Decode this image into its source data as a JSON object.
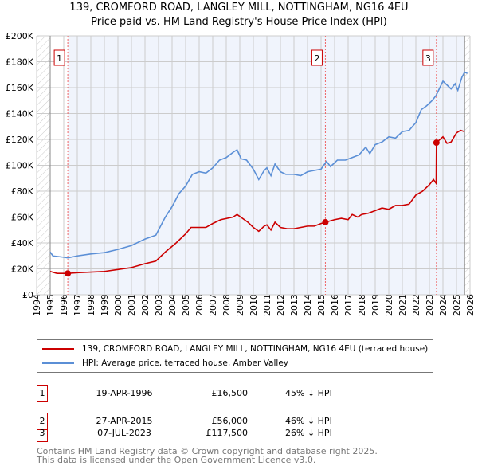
{
  "chart_data": {
    "type": "line",
    "title": "139, CROMFORD ROAD, LANGLEY MILL, NOTTINGHAM, NG16 4EU",
    "subtitle": "Price paid vs. HM Land Registry's House Price Index (HPI)",
    "xlim": [
      1994,
      2026
    ],
    "ylim": [
      0,
      200000
    ],
    "x_ticks": [
      "1994",
      "1995",
      "1996",
      "1997",
      "1998",
      "1999",
      "2000",
      "2001",
      "2002",
      "2003",
      "2004",
      "2005",
      "2006",
      "2007",
      "2008",
      "2009",
      "2010",
      "2011",
      "2012",
      "2013",
      "2014",
      "2015",
      "2016",
      "2017",
      "2018",
      "2019",
      "2020",
      "2021",
      "2022",
      "2023",
      "2024",
      "2025",
      "2026"
    ],
    "y_ticks": [
      {
        "v": 0,
        "label": "£0"
      },
      {
        "v": 20000,
        "label": "£20K"
      },
      {
        "v": 40000,
        "label": "£40K"
      },
      {
        "v": 60000,
        "label": "£60K"
      },
      {
        "v": 80000,
        "label": "£80K"
      },
      {
        "v": 100000,
        "label": "£100K"
      },
      {
        "v": 120000,
        "label": "£120K"
      },
      {
        "v": 140000,
        "label": "£140K"
      },
      {
        "v": 160000,
        "label": "£160K"
      },
      {
        "v": 180000,
        "label": "£180K"
      },
      {
        "v": 200000,
        "label": "£200K"
      }
    ],
    "grid": true,
    "series": [
      {
        "name": "139, CROMFORD ROAD, LANGLEY MILL, NOTTINGHAM, NG16 4EU (terraced house)",
        "color": "#cc0000",
        "x": [
          1995,
          1995.5,
          1996.3,
          1997,
          1998,
          1999,
          2000,
          2001,
          2002,
          2002.8,
          2003.5,
          2004.3,
          2005,
          2005.4,
          2006,
          2006.5,
          2007,
          2007.6,
          2008.5,
          2008.8,
          2009.2,
          2009.6,
          2010,
          2010.4,
          2010.8,
          2011,
          2011.3,
          2011.6,
          2012,
          2012.5,
          2013,
          2013.5,
          2014,
          2014.5,
          2015,
          2015.32,
          2016,
          2016.5,
          2017,
          2017.3,
          2017.7,
          2018,
          2018.5,
          2019,
          2019.5,
          2020,
          2020.5,
          2021,
          2021.5,
          2022,
          2022.5,
          2023,
          2023.3,
          2023.5,
          2023.52,
          2024,
          2024.3,
          2024.6,
          2025,
          2025.3,
          2025.6
        ],
        "y": [
          18000,
          16500,
          16500,
          17000,
          17500,
          18000,
          19500,
          21000,
          24000,
          26000,
          33000,
          40000,
          47000,
          52000,
          52000,
          52000,
          55000,
          58000,
          60000,
          62000,
          59000,
          56000,
          52000,
          49000,
          53000,
          54000,
          50000,
          56000,
          52000,
          51000,
          51000,
          52000,
          53000,
          53000,
          55000,
          56000,
          58000,
          59000,
          58000,
          62000,
          60000,
          62000,
          63000,
          65000,
          67000,
          66000,
          69000,
          69000,
          70000,
          77000,
          80000,
          85000,
          89000,
          86000,
          117500,
          122000,
          117000,
          118000,
          125000,
          127000,
          126000
        ]
      },
      {
        "name": "HPI: Average price, terraced house, Amber Valley",
        "color": "#5b8fd6",
        "x": [
          1995,
          1995.2,
          1996,
          1996.3,
          1997,
          1998,
          1999,
          2000,
          2001,
          2002,
          2002.8,
          2003.5,
          2004,
          2004.5,
          2005,
          2005.5,
          2006,
          2006.5,
          2007,
          2007.5,
          2008,
          2008.5,
          2008.8,
          2009.1,
          2009.5,
          2010,
          2010.4,
          2010.8,
          2011,
          2011.3,
          2011.6,
          2012,
          2012.4,
          2013,
          2013.5,
          2014,
          2014.5,
          2015,
          2015.4,
          2015.7,
          2016.2,
          2016.8,
          2017.3,
          2017.8,
          2018.3,
          2018.6,
          2019,
          2019.5,
          2020,
          2020.5,
          2021,
          2021.5,
          2022,
          2022.4,
          2022.8,
          2023.2,
          2023.5,
          2024,
          2024.3,
          2024.6,
          2024.9,
          2025.1,
          2025.4,
          2025.6,
          2025.8
        ],
        "y": [
          33000,
          30000,
          29000,
          28500,
          30000,
          31500,
          32500,
          35000,
          38000,
          43000,
          46000,
          60000,
          68000,
          78000,
          84000,
          93000,
          95000,
          94000,
          98000,
          104000,
          106000,
          110000,
          112000,
          105000,
          104000,
          97000,
          89000,
          96000,
          98000,
          92000,
          101000,
          95000,
          93000,
          93000,
          92000,
          95000,
          96000,
          97000,
          103000,
          99000,
          104000,
          104000,
          106000,
          108000,
          114000,
          109000,
          116000,
          118000,
          122000,
          121000,
          126000,
          127000,
          133000,
          143000,
          146000,
          150000,
          154000,
          165000,
          162000,
          159000,
          163000,
          158000,
          168000,
          172000,
          171000
        ]
      }
    ],
    "sales": [
      {
        "id": "1",
        "x": 1996.3,
        "y": 16500
      },
      {
        "id": "2",
        "x": 2015.32,
        "y": 56000
      },
      {
        "id": "3",
        "x": 2023.52,
        "y": 117500
      }
    ],
    "hatched_ranges": [
      [
        1994,
        1995
      ],
      [
        2025.6,
        2026
      ]
    ],
    "legend_position": "below"
  },
  "legend": {
    "property": "139, CROMFORD ROAD, LANGLEY MILL, NOTTINGHAM, NG16 4EU (terraced house)",
    "hpi": "HPI: Average price, terraced house, Amber Valley"
  },
  "transactions": [
    {
      "id": "1",
      "date": "19-APR-1996",
      "price": "£16,500",
      "hpi": "45% ↓ HPI"
    },
    {
      "id": "2",
      "date": "27-APR-2015",
      "price": "£56,000",
      "hpi": "46% ↓ HPI"
    },
    {
      "id": "3",
      "date": "07-JUL-2023",
      "price": "£117,500",
      "hpi": "26% ↓ HPI"
    }
  ],
  "footer": {
    "line1": "Contains HM Land Registry data © Crown copyright and database right 2025.",
    "line2": "This data is licensed under the Open Government Licence v3.0."
  }
}
